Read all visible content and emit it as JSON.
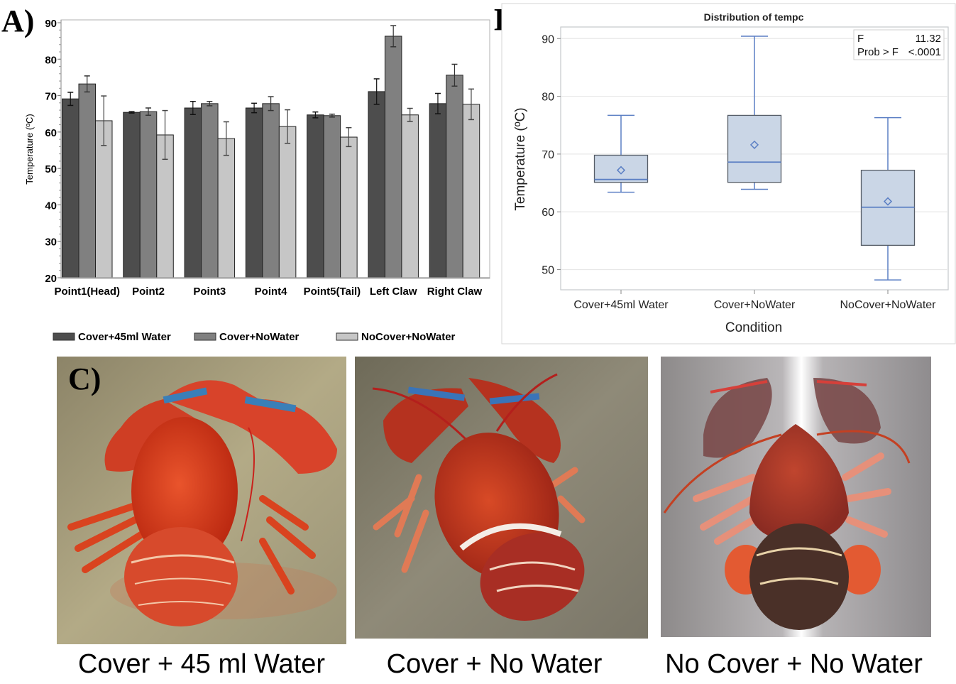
{
  "panels": {
    "a_label": "A)",
    "b_label": "B)",
    "c_label": "C)"
  },
  "chart_data": [
    {
      "type": "bar",
      "panel": "A",
      "title": "",
      "xlabel": "",
      "ylabel": "Temperature (ºC)",
      "ylim": [
        20,
        90
      ],
      "yticks": [
        20,
        30,
        40,
        50,
        60,
        70,
        80,
        90
      ],
      "categories": [
        "Point1(Head)",
        "Point2",
        "Point3",
        "Point4",
        "Point5(Tail)",
        "Left Claw",
        "Right Claw"
      ],
      "legend_position": "bottom",
      "series": [
        {
          "name": "Cover+45ml Water",
          "color": "#4d4d4d",
          "values": [
            69.1,
            65.4,
            66.6,
            66.6,
            64.7,
            71.1,
            67.8
          ],
          "errors": [
            1.8,
            0.2,
            1.8,
            1.3,
            0.8,
            3.5,
            2.8
          ]
        },
        {
          "name": "Cover+NoWater",
          "color": "#808080",
          "values": [
            73.2,
            65.6,
            67.8,
            67.8,
            64.5,
            86.3,
            75.6
          ],
          "errors": [
            2.2,
            1.0,
            0.6,
            1.9,
            0.4,
            2.9,
            3.0
          ]
        },
        {
          "name": "NoCover+NoWater",
          "color": "#c6c6c6",
          "values": [
            63.1,
            59.2,
            58.2,
            61.5,
            58.6,
            64.7,
            67.6
          ],
          "errors": [
            6.8,
            6.7,
            4.6,
            4.6,
            2.6,
            1.8,
            4.2
          ]
        }
      ]
    },
    {
      "type": "box",
      "panel": "B",
      "title": "Distribution of tempc",
      "xlabel": "Condition",
      "ylabel": "Temperature (ºC)",
      "ylim": [
        46.5,
        92
      ],
      "yticks": [
        50,
        60,
        70,
        80,
        90
      ],
      "grid": true,
      "categories": [
        "Cover+45ml Water",
        "Cover+NoWater",
        "NoCover+NoWater"
      ],
      "boxes": [
        {
          "min": 63.4,
          "q1": 65.1,
          "median": 65.6,
          "q3": 69.8,
          "max": 76.7,
          "mean": 67.2
        },
        {
          "min": 63.9,
          "q1": 65.1,
          "median": 68.6,
          "q3": 76.7,
          "max": 90.4,
          "mean": 71.6
        },
        {
          "min": 48.2,
          "q1": 54.2,
          "median": 60.8,
          "q3": 67.2,
          "max": 76.3,
          "mean": 61.8
        }
      ],
      "stats_box": {
        "position": "top-right",
        "rows": [
          {
            "label": "F",
            "value": "11.32"
          },
          {
            "label": "Prob > F",
            "value": "<.0001"
          }
        ]
      },
      "colors": {
        "box_fill": "#cad6e6",
        "box_stroke": "#555c66",
        "whisker": "#5b7fc4",
        "grid": "#e8e8e8"
      }
    }
  ],
  "photos": [
    {
      "caption": "Cover + 45 ml Water",
      "scene": "cooked-lobster-red-banded-claws"
    },
    {
      "caption": "Cover + No Water",
      "scene": "cooked-lobster-red-banded-claws"
    },
    {
      "caption": "No Cover + No Water",
      "scene": "partially-cooked-lobster-dark-tail"
    }
  ]
}
